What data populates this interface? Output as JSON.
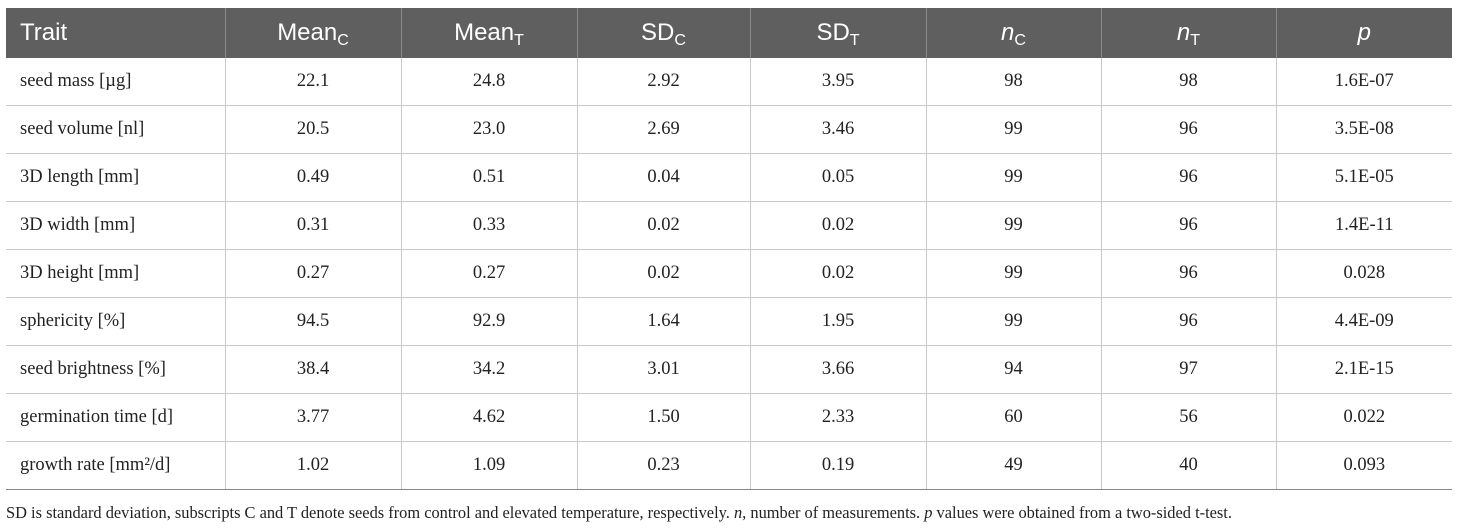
{
  "table": {
    "headers": [
      {
        "main": "Trait",
        "sub": "",
        "italic": false
      },
      {
        "main": "Mean",
        "sub": "C",
        "italic": false
      },
      {
        "main": "Mean",
        "sub": "T",
        "italic": false
      },
      {
        "main": "SD",
        "sub": "C",
        "italic": false
      },
      {
        "main": "SD",
        "sub": "T",
        "italic": false
      },
      {
        "main": "n",
        "sub": "C",
        "italic": true
      },
      {
        "main": "n",
        "sub": "T",
        "italic": true
      },
      {
        "main": "p",
        "sub": "",
        "italic": true
      }
    ],
    "rows": [
      [
        "seed mass [µg]",
        "22.1",
        "24.8",
        "2.92",
        "3.95",
        "98",
        "98",
        "1.6E-07"
      ],
      [
        "seed volume [nl]",
        "20.5",
        "23.0",
        "2.69",
        "3.46",
        "99",
        "96",
        "3.5E-08"
      ],
      [
        "3D length [mm]",
        "0.49",
        "0.51",
        "0.04",
        "0.05",
        "99",
        "96",
        "5.1E-05"
      ],
      [
        "3D width [mm]",
        "0.31",
        "0.33",
        "0.02",
        "0.02",
        "99",
        "96",
        "1.4E-11"
      ],
      [
        "3D height [mm]",
        "0.27",
        "0.27",
        "0.02",
        "0.02",
        "99",
        "96",
        "0.028"
      ],
      [
        "sphericity [%]",
        "94.5",
        "92.9",
        "1.64",
        "1.95",
        "99",
        "96",
        "4.4E-09"
      ],
      [
        "seed brightness [%]",
        "38.4",
        "34.2",
        "3.01",
        "3.66",
        "94",
        "97",
        "2.1E-15"
      ],
      [
        "germination time [d]",
        "3.77",
        "4.62",
        "1.50",
        "2.33",
        "60",
        "56",
        "0.022"
      ],
      [
        "growth rate [mm²/d]",
        "1.02",
        "1.09",
        "0.23",
        "0.19",
        "49",
        "40",
        "0.093"
      ]
    ]
  },
  "footnote": {
    "part1": "SD is standard deviation, subscripts C and T denote seeds from control and elevated temperature, respectively. ",
    "n": "n",
    "part2": ", number of measurements. ",
    "p": "p",
    "part3": " values were obtained from a two-sided t-test."
  }
}
